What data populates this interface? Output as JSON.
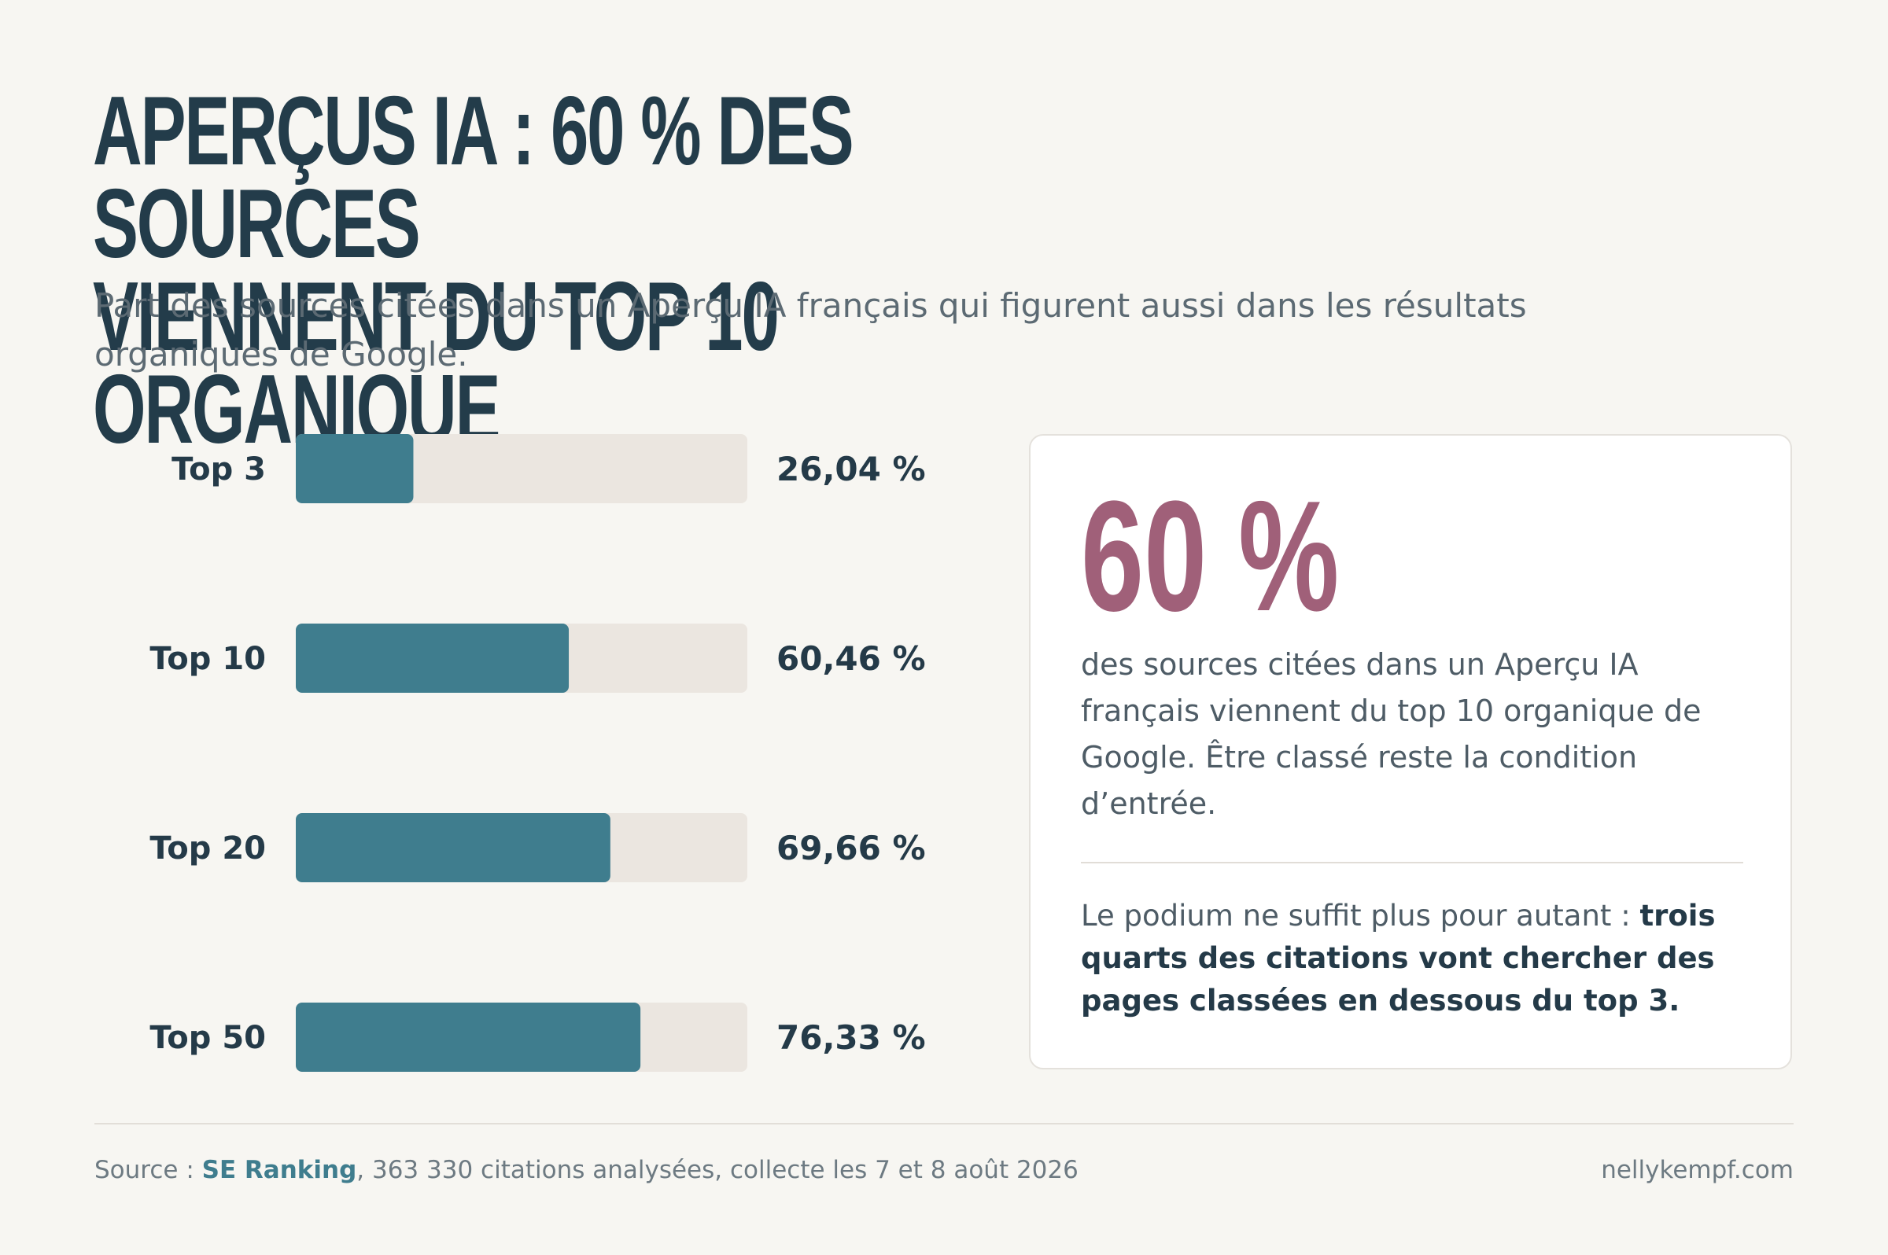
{
  "header": {
    "title_line1": "APERÇUS IA : 60 % DES SOURCES",
    "title_line2": "VIENNENT DU TOP 10 ORGANIQUE",
    "subtitle": "Part des sources citées dans un Aperçu IA français qui figurent aussi dans les résultats organiques de Google."
  },
  "chart_data": {
    "type": "bar",
    "orientation": "horizontal",
    "categories": [
      "Top 3",
      "Top 10",
      "Top 20",
      "Top 50"
    ],
    "values": [
      26.04,
      60.46,
      69.66,
      76.33
    ],
    "value_labels": [
      "26,04 %",
      "60,46 %",
      "69,66 %",
      "76,33 %"
    ],
    "xlim": [
      0,
      100
    ],
    "grid": false,
    "title": "",
    "xlabel": "",
    "ylabel": "",
    "colors": {
      "bar": "#3f7d8e",
      "track": "#ebe6e0"
    }
  },
  "card": {
    "big_stat": "60 %",
    "description": "des sources citées dans un Aperçu IA français viennent du top 10 organique de Google. Être classé reste la condition d’entrée.",
    "note_plain": "Le podium ne suffit plus pour autant : ",
    "note_bold": "trois quarts des citations vont chercher des pages classées en dessous du top 3."
  },
  "footer": {
    "source_prefix": "Source : ",
    "source_name": "SE Ranking",
    "source_suffix": ", 363 330 citations analysées, collecte les 7 et 8 août 2026",
    "site": "nellykempf.com"
  },
  "colors": {
    "background": "#f7f6f2",
    "title": "#233c4a",
    "accent": "#a06079",
    "bar": "#3f7d8e",
    "track": "#ebe6e0"
  }
}
